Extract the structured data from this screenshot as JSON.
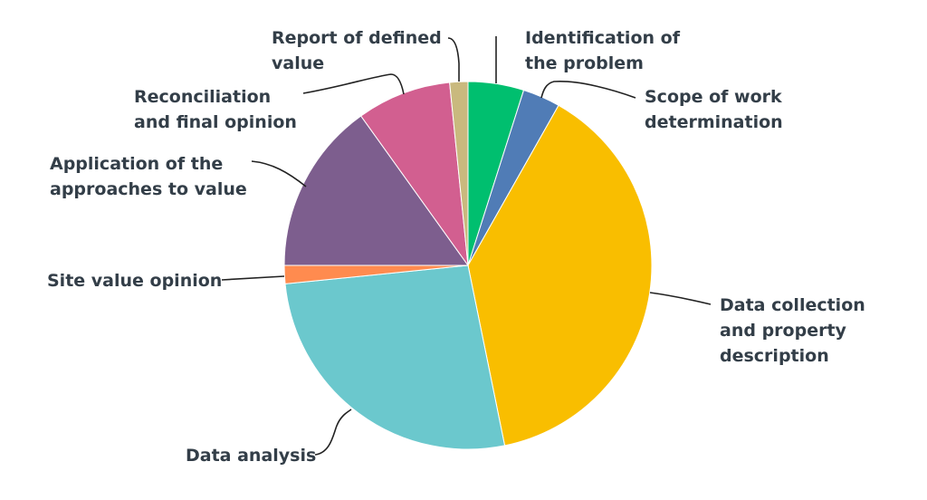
{
  "chart_data": {
    "type": "pie",
    "title": "",
    "start_angle_deg": 0,
    "direction": "clockwise",
    "legend": "none (direct labels with leader lines)",
    "slices": [
      {
        "label": "Identification of the problem",
        "value": 4.9,
        "color": "#00bf6f"
      },
      {
        "label": "Scope of work determination",
        "value": 3.3,
        "color": "#507cb6"
      },
      {
        "label": "Data collection and property description",
        "value": 38.6,
        "color": "#f9be00"
      },
      {
        "label": "Data analysis",
        "value": 26.6,
        "color": "#6bc8cd"
      },
      {
        "label": "Site value opinion",
        "value": 1.6,
        "color": "#ff8b4f"
      },
      {
        "label": "Application of the approaches to value",
        "value": 15.1,
        "color": "#7d5e8e"
      },
      {
        "label": "Reconciliation and final opinion",
        "value": 8.3,
        "color": "#d25f90"
      },
      {
        "label": "Report of defined value",
        "value": 1.6,
        "color": "#c9b97e"
      }
    ],
    "label_lines": [
      [
        "Identification of",
        "the problem"
      ],
      [
        "Scope of work",
        "determination"
      ],
      [
        "Data collection",
        "and property",
        "description"
      ],
      [
        "Data analysis"
      ],
      [
        "Site value opinion"
      ],
      [
        "Application of the",
        "approaches to value"
      ],
      [
        "Reconciliation",
        "and final opinion"
      ],
      [
        "Report of defined",
        "value"
      ]
    ]
  }
}
